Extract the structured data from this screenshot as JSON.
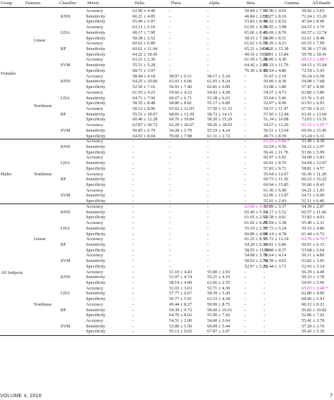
{
  "headers": [
    "Group",
    "Features",
    "Classifier",
    "Metric",
    "Delta",
    "Theta",
    "Alpha",
    "Beta",
    "Gamma",
    "All Bands"
  ],
  "highlight_color": "#e01bd4",
  "groups": [
    {
      "label": "Females",
      "row": 11.5
    },
    {
      "label": "Males",
      "row": 30
    },
    {
      "label": "All Subjects",
      "row": 48.2
    }
  ],
  "features": [
    {
      "label": "Linear",
      "row": 5.5
    },
    {
      "label": "Nonlinear",
      "row": 17.5
    },
    {
      "label": "Nonlinear",
      "row": 30
    },
    {
      "label": "Linear",
      "row": 42
    },
    {
      "label": "Nonlinear",
      "row": 54
    }
  ],
  "classifiers": [
    {
      "label": "KNN",
      "row": 1
    },
    {
      "label": "LDA",
      "row": 4
    },
    {
      "label": "RF",
      "row": 7
    },
    {
      "label": "SVM",
      "row": 10
    },
    {
      "label": "KNN",
      "row": 13
    },
    {
      "label": "LDA",
      "row": 16
    },
    {
      "label": "RF",
      "row": 19
    },
    {
      "label": "SVM",
      "row": 22
    },
    {
      "label": "KNN",
      "row": 25
    },
    {
      "label": "LDA",
      "row": 28
    },
    {
      "label": "RF",
      "row": 31
    },
    {
      "label": "SVM",
      "row": 34
    },
    {
      "label": "KNN",
      "row": 37
    },
    {
      "label": "LDA",
      "row": 40
    },
    {
      "label": "RF",
      "row": 43
    },
    {
      "label": "SVM",
      "row": 46
    },
    {
      "label": "KNN",
      "row": 49
    },
    {
      "label": "LDA",
      "row": 52
    },
    {
      "label": "RF",
      "row": 55
    },
    {
      "label": "SVM",
      "row": 58
    }
  ],
  "rows": [
    [
      "Accuracy",
      "62.90 ± 4.40",
      "-",
      "-",
      "50.84 ± 7.16",
      "53.90 ± 4.65",
      "59.42 ± 5.03"
    ],
    [
      "Sensitivity",
      "60.21 ± 4.85",
      "-",
      "-",
      "46.84 ± 12.82",
      "51.27 ± 8.16",
      "71.24 ± 13.20"
    ],
    [
      "Specificity",
      "65.49 ± 6.97",
      "-",
      "-",
      "53.83 ± 8.40",
      "56.52 ± 8.52",
      "47.94 ± 8.90"
    ],
    [
      "Accuracy",
      "63.11 ± 5.19",
      "-",
      "-",
      "61.05 ± 4.20",
      "56.95 ± 3.98",
      "64.53 ± 3.70"
    ],
    [
      "Sensitivity",
      "68.17 ± 7.90",
      "-",
      "-",
      "65.06 ± 8.41",
      "59.69 ± 8.76",
      "66.57 ± 12.74"
    ],
    [
      "Specificity",
      "58.38 ± 2.52",
      "-",
      "-",
      "58.15 ± 7.14",
      "53.89 ± 8.51",
      "62.61 ± 8.48"
    ],
    [
      "Accuracy",
      "60.62 ± 6.89",
      "-",
      "-",
      "61.62 ± 6.18",
      "53.26 ± 4.21",
      "66.55 ± 7.99"
    ],
    [
      "Sensitivity",
      "60.61 ± 11.04",
      "-",
      "-",
      "65.21 ± 24.46",
      "54.26 ± 15.38",
      "56.38 ± 17.06"
    ],
    [
      "Specificity",
      "64.22 ± 18.45",
      "-",
      "-",
      "49.16 ± 16.10",
      "59.91 ± 13.84",
      "59.78 ± 18.41"
    ],
    [
      "Accuracy",
      "63.21 ± 2.36",
      "-",
      "-",
      "61.59 ± 5.28",
      "56.00 ± 4.30",
      "69.12 ± 5.88 *"
    ],
    [
      "Sensitivity",
      "55.51 ± 5.28",
      "-",
      "-",
      "64.42 ± 2.85",
      "58.33 ± 11.79",
      "64.15 ± 15.04"
    ],
    [
      "Specificity",
      "68.71 ± 3.97",
      "-",
      "-",
      "76.36 ± 8.48",
      "53.64 ± 4.86",
      "72.54 ± 5.43"
    ],
    [
      "Accuracy",
      "58.44 ± 4.18",
      "58.97 ± 6.51",
      "58.17 ± 5.24",
      "-",
      "51.67 ± 2.19",
      "56.24 ± 6.58"
    ],
    [
      "Sensitivity",
      "64.25 ± 10.06",
      "61.03 ± 6.06",
      "61.65 ± 8.24",
      "-",
      "50.09 ± 4.30",
      "54.98 ± 7.68"
    ],
    [
      "Specificity",
      "52.50 ± 7.16",
      "56.93 ± 7.40",
      "62.81 ± 6.09",
      "-",
      "53.08 ± 3.80",
      "57.47 ± 8.90"
    ],
    [
      "Accuracy",
      "61.55 ± 4.23",
      "59.66 ± 4.22",
      "54.02 ± 4.28",
      "-",
      "54.27 ± 4.73",
      "63.86 ± 5.80"
    ],
    [
      "Sensitivity",
      "64.71 ± 7.90",
      "60.67 ± 6.71",
      "53.38 ± 6.03",
      "-",
      "55.64 ± 5.46",
      "63.76 ± 5.26"
    ],
    [
      "Specificity",
      "58.55 ± 8.48",
      "58.80 ± 8.81",
      "55.17 ± 6.89",
      "-",
      "52.97 ± 8.90",
      "63.93 ± 6.93"
    ],
    [
      "Accuracy",
      "58.12 ± 8.96",
      "65.62 ± 12.93",
      "57.50 ± 11.33",
      "-",
      "54.37 ± 11.47",
      "67.50 ± 8.23"
    ],
    [
      "Sensitivity",
      "55.51 ± 18.07",
      "68.83 ± 13.39",
      "58.73 ± 14.15",
      "-",
      "57.60 ± 12.44",
      "63.41 ± 13.60"
    ],
    [
      "Specificity",
      "60.40 ± 12.28",
      "69.76 ± 19.84",
      "58.20 ± 15.29",
      "-",
      "51.34 ± 16.08",
      "72.03 ± 13.35"
    ],
    [
      "Accuracy",
      "62.87 ± 20.72",
      "62.29 ± 20.67",
      "58.26 ± 18.65",
      "-",
      "54.27 ± 13.20",
      "65.15 ± 5.95 *"
    ],
    [
      "Sensitivity",
      "50.85 ± 6.79",
      "54.28 ± 5.70",
      "55.19 ± 4.24",
      "-",
      "56.51 ± 12.64",
      "69.69 ± 15.45"
    ],
    [
      "Specificity",
      "64.93 ± 8.04",
      "70.00 ± 7.98",
      "61.31 ± 2.72",
      "-",
      "49.73 ± 8.39",
      "63.24 ± 6.33"
    ],
    [
      "Accuracy",
      "-",
      "-",
      "-",
      "-",
      "63.25 ± 9.80 *",
      "53.49 ± 4.30"
    ],
    [
      "Sensitivity",
      "-",
      "-",
      "-",
      "-",
      "52.54 ± 9.56",
      "54.22 ± 2.97"
    ],
    [
      "Specificity",
      "-",
      "-",
      "-",
      "-",
      "56.41 ± 11.76",
      "53.96 ± 5.99"
    ],
    [
      "Accuracy",
      "-",
      "-",
      "-",
      "-",
      "60.97 ± 6.92",
      "54.98 ± 5.83"
    ],
    [
      "Sensitivity",
      "-",
      "-",
      "-",
      "-",
      "66.91 ± 8.70",
      "54.94 ± 12.07"
    ],
    [
      "Specificity",
      "-",
      "-",
      "-",
      "-",
      "57.83 ± 9.71",
      "58.81 ± 4.57"
    ],
    [
      "Accuracy",
      "-",
      "-",
      "-",
      "-",
      "55.64 ± 12.67",
      "56.30 ± 11.20"
    ],
    [
      "Sensitivity",
      "-",
      "-",
      "-",
      "-",
      "60.73 ± 11.56",
      "60.23 ± 16.22"
    ],
    [
      "Specificity",
      "-",
      "-",
      "-",
      "-",
      "69.94 ± 15.85",
      "56.00 ± 8.43"
    ],
    [
      "Accuracy",
      "-",
      "-",
      "-",
      "-",
      "61.36 ± 6.00",
      "54.21 ± 1.83"
    ],
    [
      "Sensitivity",
      "-",
      "-",
      "-",
      "-",
      "62.06 ± 13.97",
      "54.71 ± 9.09"
    ],
    [
      "Specificity",
      "-",
      "-",
      "-",
      "-",
      "55.91 ± 2.43",
      "52.11 ± 6.46"
    ],
    [
      "Accuracy",
      "-",
      "-",
      "-",
      "63.90 ± 4.36 *",
      "53.89 ± 3.37",
      "54.39 ± 2.87"
    ],
    [
      "Sensitivity",
      "-",
      "-",
      "-",
      "65.45 ± 5.13",
      "54.17 ± 5.52",
      "60.57 ± 11.66"
    ],
    [
      "Specificity",
      "-",
      "-",
      "-",
      "61.65 ± 2.53",
      "53.58 ± 4.61",
      "53.83 ± 4.03"
    ],
    [
      "Accuracy",
      "-",
      "-",
      "-",
      "61.02 ± 6.29",
      "55.04 ± 3.38",
      "55.40 ± 2.31"
    ],
    [
      "Sensitivity",
      "-",
      "-",
      "-",
      "55.10 ± 2.78",
      "57.73 ± 5.24",
      "59.15 ± 4.80"
    ],
    [
      "Specificity",
      "-",
      "-",
      "-",
      "60.89 ± 4.60",
      "58.14 ± 4.78",
      "61.44 ± 6.72"
    ],
    [
      "Accuracy",
      "-",
      "-",
      "-",
      "61.25 ± 8.55",
      "51.72 ± 12.14",
      "62.70 ± 6.70 *"
    ],
    [
      "Sensitivity",
      "-",
      "-",
      "-",
      "54.20 ± 6.33",
      "54.81 ± 6.86",
      "56.01 ± 6.33"
    ],
    [
      "Specificity",
      "-",
      "-",
      "-",
      "58.55 ± 11.74",
      "58.98 ± 8.37",
      "53.68 ± 5.04"
    ],
    [
      "Accuracy",
      "-",
      "-",
      "-",
      "54.68 ± 3.79",
      "55.64 ± 4.14",
      "56.11 ± 4.80"
    ],
    [
      "Sensitivity",
      "-",
      "-",
      "-",
      "58.03 ± 2.79",
      "54.59 ± 4.65",
      "53.82 ± 3.05"
    ],
    [
      "Specificity",
      "-",
      "-",
      "-",
      "52.97 ± 5.26",
      "53.44 ± 3.71",
      "52.93 ± 3.14"
    ],
    [
      "Accuracy",
      "-",
      "51.10 ± 4.43",
      "55.00 ± 2.93",
      "-",
      "-",
      "56.39 ± 4.40"
    ],
    [
      "Sensitivity",
      "-",
      "53.97 ± 4.74",
      "55.21 ± 4.10",
      "-",
      "-",
      "59.33 ± 3.78"
    ],
    [
      "Specificity",
      "-",
      "58.14 ± 4.90",
      "61.66 ± 2.55",
      "-",
      "-",
      "54.95 ± 5.96"
    ],
    [
      "Accuracy",
      "-",
      "51.03 ± 3.63",
      "52.71 ± 4.30",
      "-",
      "-",
      "65.03 ± 2.48 *"
    ],
    [
      "Sensitivity",
      "-",
      "57.77 ± 6.67",
      "58.39 ± 5.20",
      "-",
      "-",
      "62.80 ± 4.90"
    ],
    [
      "Specificity",
      "-",
      "50.77 ± 5.91",
      "63.53 ± 4.38",
      "-",
      "-",
      "68.96 ± 5.93"
    ],
    [
      "Accuracy",
      "-",
      "45.44 ± 8.27",
      "59.90 ± 8.75",
      "-",
      "-",
      "60.12 ± 8.21"
    ],
    [
      "Sensitivity",
      "-",
      "54.39 ± 9.72",
      "59.60 ± 10.61",
      "-",
      "-",
      "56.82 ± 10.82"
    ],
    [
      "Specificity",
      "-",
      "64.76 ± 8.62",
      "55.90 ± 7.42",
      "-",
      "-",
      "52.86 ± 7.92"
    ],
    [
      "Accuracy",
      "-",
      "54.51 ± 2.00",
      "54.60 ± 1.64",
      "-",
      "-",
      "55.41 ± 2.78"
    ],
    [
      "Sensitivity",
      "-",
      "53.89 ± 5.50",
      "60.09 ± 5.44",
      "-",
      "-",
      "57.20 ± 3.76"
    ],
    [
      "Specificity",
      "-",
      "55.13 ± 9.02",
      "67.87 ± 2.07",
      "-",
      "-",
      "59.42 ± 5.29"
    ]
  ],
  "highlights": [
    {
      "row": 9,
      "col": 6
    },
    {
      "row": 21,
      "col": 6
    },
    {
      "row": 24,
      "col": 5
    },
    {
      "row": 36,
      "col": 4
    },
    {
      "row": 42,
      "col": 6
    },
    {
      "row": 51,
      "col": 6
    }
  ],
  "footer": {
    "left": "VOLUME 4, 2016",
    "right": "7"
  }
}
